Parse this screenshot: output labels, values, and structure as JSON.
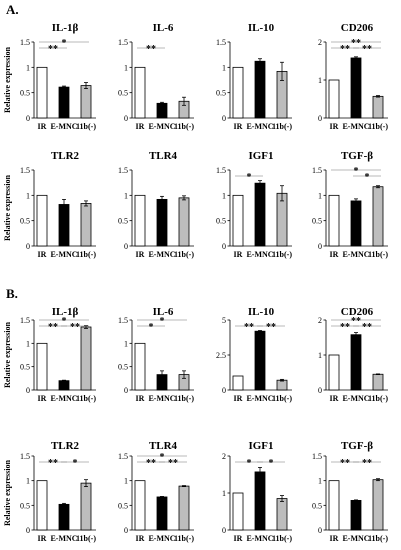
{
  "figure": {
    "category_labels": [
      "IR",
      "E-MNC",
      "11b(-)"
    ],
    "ylabel": "Relative expression"
  },
  "colors": {
    "ir": "#ffffff",
    "emnc": "#000000",
    "cd11b": "#bdbdbd",
    "axis": "#000000"
  },
  "panels": [
    {
      "label": "A.",
      "charts": [
        {
          "type": "bar",
          "title": "IL-1β",
          "ylim": [
            0,
            1.5
          ],
          "yticks": [
            "0",
            "0.5",
            "1",
            "1.5"
          ],
          "values": [
            1.0,
            0.61,
            0.64
          ],
          "errors": [
            0,
            0.02,
            0.06
          ],
          "sig": [
            {
              "a": 0,
              "b": 1,
              "label": "**",
              "level": 0
            },
            {
              "a": 0,
              "b": 2,
              "label": "*",
              "level": 1
            }
          ]
        },
        {
          "type": "bar",
          "title": "IL-6",
          "ylim": [
            0,
            1.5
          ],
          "yticks": [
            "0",
            "0.5",
            "1",
            "1.5"
          ],
          "values": [
            1.0,
            0.29,
            0.33
          ],
          "errors": [
            0,
            0.02,
            0.08
          ],
          "sig": [
            {
              "a": 0,
              "b": 1,
              "label": "**",
              "level": 0
            }
          ]
        },
        {
          "type": "bar",
          "title": "IL-10",
          "ylim": [
            0,
            1.5
          ],
          "yticks": [
            "0",
            "0.5",
            "1",
            "1.5"
          ],
          "values": [
            1.0,
            1.12,
            0.92
          ],
          "errors": [
            0,
            0.05,
            0.18
          ],
          "sig": []
        },
        {
          "type": "bar",
          "title": "CD206",
          "ylim": [
            0,
            2
          ],
          "yticks": [
            "0",
            "1",
            "2"
          ],
          "values": [
            1.0,
            1.58,
            0.57
          ],
          "errors": [
            0,
            0.03,
            0.02
          ],
          "sig": [
            {
              "a": 0,
              "b": 1,
              "label": "**",
              "level": 0
            },
            {
              "a": 1,
              "b": 2,
              "label": "**",
              "level": 0
            },
            {
              "a": 0,
              "b": 2,
              "label": "**",
              "level": 1
            }
          ]
        },
        {
          "type": "bar",
          "title": "TLR2",
          "ylim": [
            0,
            1.5
          ],
          "yticks": [
            "0",
            "0.5",
            "1",
            "1.5"
          ],
          "values": [
            1.0,
            0.82,
            0.84
          ],
          "errors": [
            0,
            0.1,
            0.05
          ],
          "sig": []
        },
        {
          "type": "bar",
          "title": "TLR4",
          "ylim": [
            0,
            1.5
          ],
          "yticks": [
            "0",
            "0.5",
            "1",
            "1.5"
          ],
          "values": [
            1.0,
            0.92,
            0.95
          ],
          "errors": [
            0,
            0.06,
            0.04
          ],
          "sig": []
        },
        {
          "type": "bar",
          "title": "IGF1",
          "ylim": [
            0,
            1.5
          ],
          "yticks": [
            "0",
            "0.5",
            "1",
            "1.5"
          ],
          "values": [
            1.0,
            1.24,
            1.04
          ],
          "errors": [
            0,
            0.05,
            0.15
          ],
          "sig": [
            {
              "a": 0,
              "b": 1,
              "label": "*",
              "level": 0
            }
          ]
        },
        {
          "type": "bar",
          "title": "TGF-β",
          "ylim": [
            0,
            1.5
          ],
          "yticks": [
            "0",
            "0.5",
            "1",
            "1.5"
          ],
          "values": [
            1.0,
            0.89,
            1.17
          ],
          "errors": [
            0,
            0.04,
            0.02
          ],
          "sig": [
            {
              "a": 1,
              "b": 2,
              "label": "*",
              "level": 0
            },
            {
              "a": 0,
              "b": 2,
              "label": "*",
              "level": 1
            }
          ]
        }
      ]
    },
    {
      "label": "B.",
      "charts": [
        {
          "type": "bar",
          "title": "IL-1β",
          "ylim": [
            0,
            1.5
          ],
          "yticks": [
            "0",
            "0.5",
            "1",
            "1.5"
          ],
          "values": [
            1.0,
            0.2,
            1.35
          ],
          "errors": [
            0,
            0.01,
            0.03
          ],
          "sig": [
            {
              "a": 0,
              "b": 1,
              "label": "**",
              "level": 0
            },
            {
              "a": 1,
              "b": 2,
              "label": "**",
              "level": 0
            },
            {
              "a": 0,
              "b": 2,
              "label": "*",
              "level": 1
            }
          ]
        },
        {
          "type": "bar",
          "title": "IL-6",
          "ylim": [
            0,
            1.5
          ],
          "yticks": [
            "0",
            "0.5",
            "1",
            "1.5"
          ],
          "values": [
            1.0,
            0.33,
            0.33
          ],
          "errors": [
            0,
            0.08,
            0.08
          ],
          "sig": [
            {
              "a": 0,
              "b": 1,
              "label": "*",
              "level": 0
            },
            {
              "a": 0,
              "b": 2,
              "label": "*",
              "level": 1
            }
          ]
        },
        {
          "type": "bar",
          "title": "IL-10",
          "ylim": [
            0,
            5
          ],
          "yticks": [
            "0",
            "2.5",
            "5"
          ],
          "values": [
            1.0,
            4.2,
            0.7
          ],
          "errors": [
            0,
            0.05,
            0.06
          ],
          "sig": [
            {
              "a": 0,
              "b": 1,
              "label": "**",
              "level": 0
            },
            {
              "a": 1,
              "b": 2,
              "label": "**",
              "level": 0
            }
          ]
        },
        {
          "type": "bar",
          "title": "CD206",
          "ylim": [
            0,
            2
          ],
          "yticks": [
            "0",
            "1",
            "2"
          ],
          "values": [
            1.0,
            1.58,
            0.45
          ],
          "errors": [
            0,
            0.06,
            0.01
          ],
          "sig": [
            {
              "a": 0,
              "b": 1,
              "label": "**",
              "level": 0
            },
            {
              "a": 1,
              "b": 2,
              "label": "**",
              "level": 0
            },
            {
              "a": 0,
              "b": 2,
              "label": "**",
              "level": 1
            }
          ]
        },
        {
          "type": "bar",
          "title": "TLR2",
          "ylim": [
            0,
            1.5
          ],
          "yticks": [
            "0",
            "0.5",
            "1",
            "1.5"
          ],
          "values": [
            1.0,
            0.52,
            0.95
          ],
          "errors": [
            0,
            0.02,
            0.07
          ],
          "sig": [
            {
              "a": 0,
              "b": 1,
              "label": "**",
              "level": 0
            },
            {
              "a": 1,
              "b": 2,
              "label": "*",
              "level": 0
            }
          ]
        },
        {
          "type": "bar",
          "title": "TLR4",
          "ylim": [
            0,
            1.5
          ],
          "yticks": [
            "0",
            "0.5",
            "1",
            "1.5"
          ],
          "values": [
            1.0,
            0.67,
            0.89
          ],
          "errors": [
            0,
            0.01,
            0.01
          ],
          "sig": [
            {
              "a": 0,
              "b": 1,
              "label": "**",
              "level": 0
            },
            {
              "a": 1,
              "b": 2,
              "label": "**",
              "level": 0
            },
            {
              "a": 0,
              "b": 2,
              "label": "*",
              "level": 1
            }
          ]
        },
        {
          "type": "bar",
          "title": "IGF1",
          "ylim": [
            0,
            2
          ],
          "yticks": [
            "0",
            "1",
            "2"
          ],
          "values": [
            1.0,
            1.57,
            0.85
          ],
          "errors": [
            0,
            0.12,
            0.08
          ],
          "sig": [
            {
              "a": 0,
              "b": 1,
              "label": "*",
              "level": 0
            },
            {
              "a": 1,
              "b": 2,
              "label": "*",
              "level": 0
            }
          ]
        },
        {
          "type": "bar",
          "title": "TGF-β",
          "ylim": [
            0,
            1.5
          ],
          "yticks": [
            "0",
            "0.5",
            "1",
            "1.5"
          ],
          "values": [
            1.0,
            0.6,
            1.02
          ],
          "errors": [
            0,
            0.01,
            0.02
          ],
          "sig": [
            {
              "a": 0,
              "b": 1,
              "label": "**",
              "level": 0
            },
            {
              "a": 1,
              "b": 2,
              "label": "**",
              "level": 0
            }
          ]
        }
      ]
    }
  ]
}
